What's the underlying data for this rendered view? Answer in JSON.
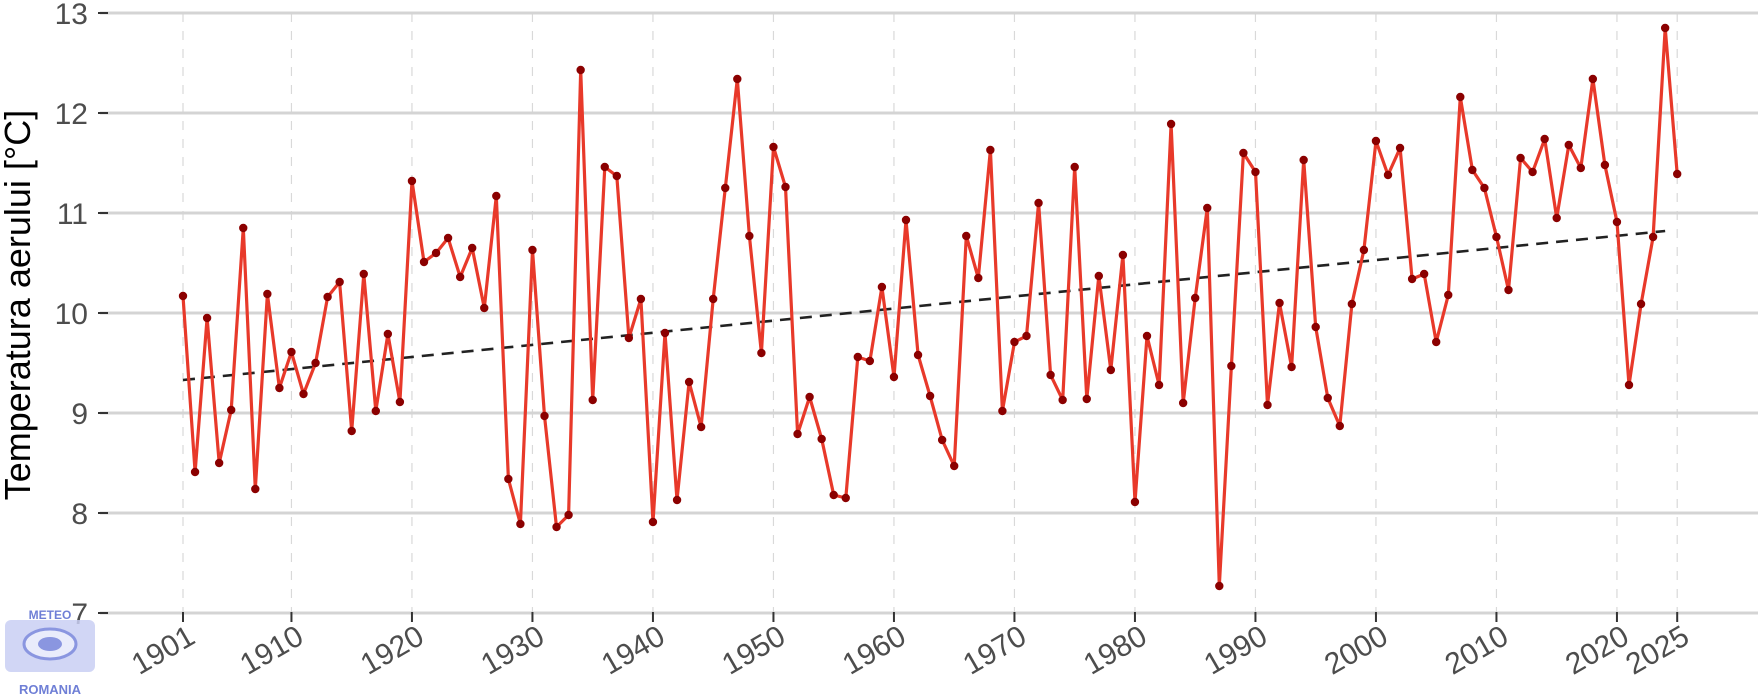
{
  "chart_data": {
    "type": "line",
    "title": "",
    "xlabel": "",
    "ylabel": "Temperatura aerului [°C]",
    "ylim": [
      7,
      13
    ],
    "xlim": [
      1901,
      2025
    ],
    "grid": "horizontal major lines, dashed vertical at x ticks",
    "yticks": [
      7,
      8,
      9,
      10,
      11,
      12,
      13
    ],
    "xticks": [
      1901,
      1910,
      1920,
      1930,
      1940,
      1950,
      1960,
      1970,
      1980,
      1990,
      2000,
      2010,
      2020,
      2025
    ],
    "x_start": 1901,
    "series": [
      {
        "color": "#e8392a",
        "marker_color": "#8b0000",
        "values": [
          10.17,
          8.41,
          9.95,
          8.5,
          9.03,
          10.85,
          8.24,
          10.19,
          9.25,
          9.61,
          9.19,
          9.5,
          10.16,
          10.31,
          8.82,
          10.39,
          9.02,
          9.79,
          9.11,
          11.32,
          10.51,
          10.6,
          10.75,
          10.36,
          10.65,
          10.05,
          11.17,
          8.34,
          7.89,
          10.63,
          8.97,
          7.86,
          7.98,
          12.43,
          9.13,
          11.46,
          11.37,
          9.75,
          10.14,
          7.91,
          9.8,
          8.13,
          9.31,
          8.86,
          10.14,
          11.25,
          12.34,
          10.77,
          9.6,
          11.66,
          11.26,
          8.79,
          9.16,
          8.74,
          8.18,
          8.15,
          9.56,
          9.52,
          10.26,
          9.36,
          10.93,
          9.58,
          9.17,
          8.73,
          8.47,
          10.77,
          10.35,
          11.63,
          9.02,
          9.71,
          9.77,
          11.1,
          9.38,
          9.13,
          11.46,
          9.14,
          10.37,
          9.43,
          10.58,
          8.11,
          9.77,
          9.28,
          11.89,
          9.1,
          10.15,
          11.05,
          7.27,
          9.47,
          11.6,
          11.41,
          9.08,
          10.1,
          9.46,
          11.53,
          9.86,
          9.15,
          8.87,
          10.09,
          10.63,
          11.72,
          11.38,
          11.65,
          10.34,
          10.39,
          9.71,
          10.18,
          12.16,
          11.43,
          11.25,
          10.76,
          10.23,
          11.55,
          11.41,
          11.74,
          10.95,
          11.68,
          11.45,
          12.34,
          11.48,
          10.91,
          9.28,
          10.09,
          10.76,
          12.85,
          11.39
        ]
      }
    ],
    "trend": {
      "style": "dashed",
      "color": "#222222",
      "x": [
        1901,
        2024
      ],
      "y": [
        9.33,
        10.82
      ]
    }
  },
  "logo": {
    "top_text": "METEO",
    "bottom_text": "ROMANIA"
  }
}
